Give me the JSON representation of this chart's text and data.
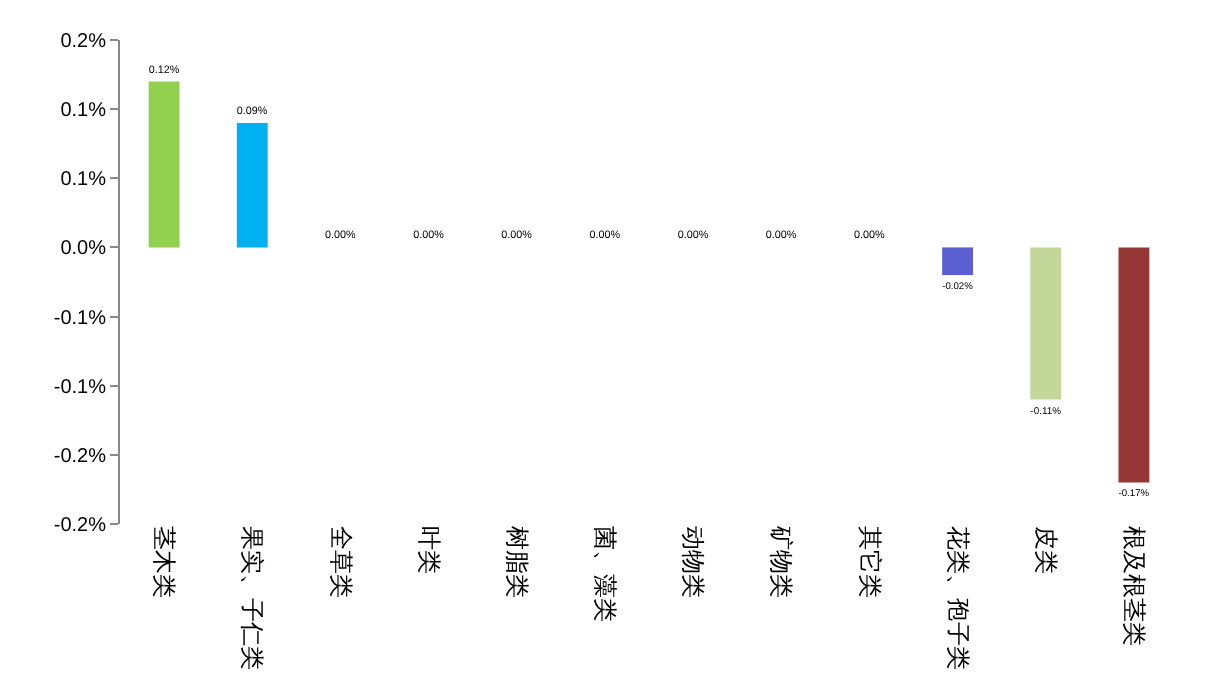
{
  "chart_data": {
    "type": "bar",
    "categories": [
      "茎木类",
      "果实、子仁类",
      "全草类",
      "叶类",
      "树脂类",
      "菌、藻类",
      "动物类",
      "矿物类",
      "其它类",
      "花类、孢子类",
      "皮类",
      "根及根茎类"
    ],
    "values": [
      0.12,
      0.09,
      0,
      0,
      0,
      0,
      0,
      0,
      0,
      -0.02,
      -0.11,
      -0.17
    ],
    "colors": [
      "#92d050",
      "#00b0f0",
      "#a6a6a6",
      "#a6a6a6",
      "#a6a6a6",
      "#a6a6a6",
      "#a6a6a6",
      "#a6a6a6",
      "#a6a6a6",
      "#5b5fd2",
      "#c4d79b",
      "#953735"
    ],
    "value_labels": [
      "0.12%",
      "0.09%",
      "0.00%",
      "0.00%",
      "0.00%",
      "0.00%",
      "0.00%",
      "0.00%",
      "0.00%",
      "-0.02%",
      "-0.11%",
      "-0.17%"
    ],
    "ylim": [
      -0.2,
      0.15
    ],
    "yticks": [
      {
        "value": 0.15,
        "label": "0.2%"
      },
      {
        "value": 0.1,
        "label": "0.1%"
      },
      {
        "value": 0.05,
        "label": "0.1%"
      },
      {
        "value": 0,
        "label": "0.0%"
      },
      {
        "value": -0.05,
        "label": "-0.1%"
      },
      {
        "value": -0.1,
        "label": "-0.1%"
      },
      {
        "value": -0.15,
        "label": "-0.2%"
      },
      {
        "value": -0.2,
        "label": "-0.2%"
      }
    ],
    "grid": false,
    "legend": false
  }
}
